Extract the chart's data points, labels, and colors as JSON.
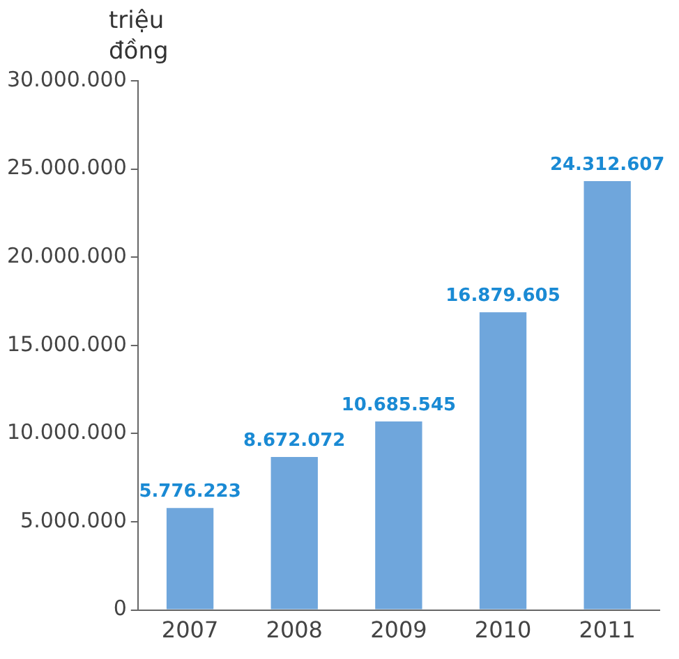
{
  "chart_data": {
    "type": "bar",
    "ylabel": "triệu đồng",
    "categories": [
      "2007",
      "2008",
      "2009",
      "2010",
      "2011"
    ],
    "values": [
      5776223,
      8672072,
      10685545,
      16879605,
      24312607
    ],
    "value_labels": [
      "5.776.223",
      "8.672.072",
      "10.685.545",
      "16.879.605",
      "24.312.607"
    ],
    "color": "#6fa6dc",
    "ylim": [
      0,
      30000000
    ],
    "yticks": [
      {
        "value": 0,
        "label": "0"
      },
      {
        "value": 5000000,
        "label": "5.000.000"
      },
      {
        "value": 10000000,
        "label": "10.000.000"
      },
      {
        "value": 15000000,
        "label": "15.000.000"
      },
      {
        "value": 20000000,
        "label": "20.000.000"
      },
      {
        "value": 25000000,
        "label": "25.000.000"
      },
      {
        "value": 30000000,
        "label": "30.000.000"
      }
    ],
    "grid": false,
    "legend": false
  }
}
